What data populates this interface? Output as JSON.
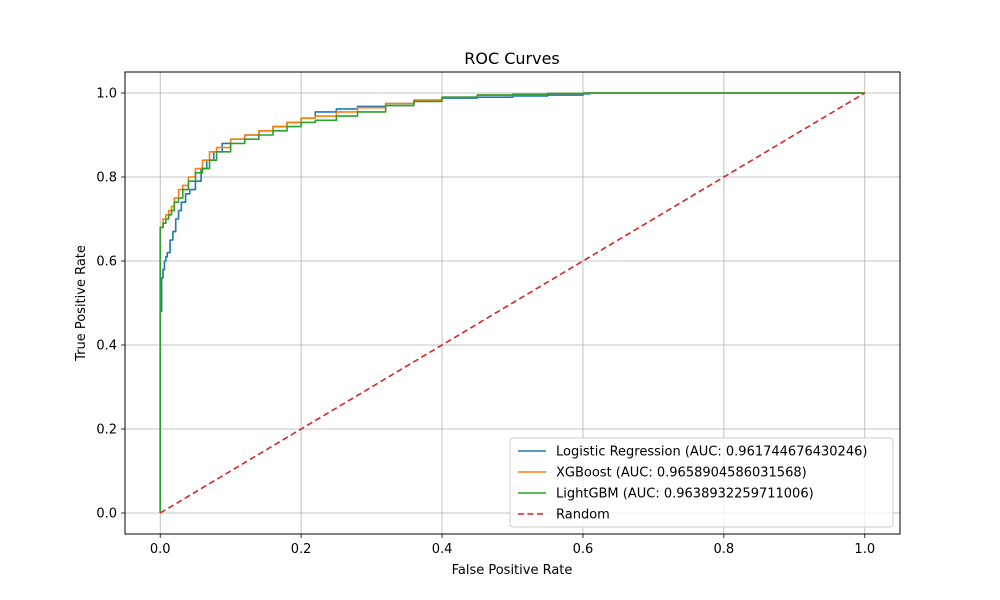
{
  "chart_data": {
    "type": "line",
    "title": "ROC Curves",
    "xlabel": "False Positive Rate",
    "ylabel": "True Positive Rate",
    "xlim": [
      -0.05,
      1.05
    ],
    "ylim": [
      -0.05,
      1.05
    ],
    "xticks": [
      0.0,
      0.2,
      0.4,
      0.6,
      0.8,
      1.0
    ],
    "yticks": [
      0.0,
      0.2,
      0.4,
      0.6,
      0.8,
      1.0
    ],
    "xtick_labels": [
      "0.0",
      "0.2",
      "0.4",
      "0.6",
      "0.8",
      "1.0"
    ],
    "ytick_labels": [
      "0.0",
      "0.2",
      "0.4",
      "0.6",
      "0.8",
      "1.0"
    ],
    "grid": true,
    "legend_position": "lower-right",
    "series": [
      {
        "name": "Logistic Regression (AUC: 0.961744676430246)",
        "color": "#1f77b4",
        "style": "solid",
        "x": [
          0.0,
          0.0,
          0.002,
          0.002,
          0.004,
          0.006,
          0.008,
          0.01,
          0.014,
          0.018,
          0.022,
          0.026,
          0.03,
          0.036,
          0.042,
          0.05,
          0.058,
          0.066,
          0.076,
          0.088,
          0.1,
          0.12,
          0.14,
          0.16,
          0.18,
          0.2,
          0.22,
          0.25,
          0.28,
          0.32,
          0.36,
          0.4,
          0.45,
          0.5,
          0.55,
          0.6,
          0.61,
          1.0
        ],
        "y": [
          0.0,
          0.48,
          0.48,
          0.56,
          0.58,
          0.6,
          0.61,
          0.62,
          0.65,
          0.67,
          0.7,
          0.72,
          0.74,
          0.76,
          0.77,
          0.79,
          0.82,
          0.84,
          0.86,
          0.88,
          0.89,
          0.9,
          0.91,
          0.92,
          0.93,
          0.94,
          0.955,
          0.962,
          0.968,
          0.975,
          0.983,
          0.988,
          0.99,
          0.993,
          0.995,
          0.998,
          1.0,
          1.0
        ]
      },
      {
        "name": "XGBoost (AUC: 0.9658904586031568)",
        "color": "#ff7f0e",
        "style": "solid",
        "x": [
          0.0,
          0.0,
          0.004,
          0.008,
          0.012,
          0.016,
          0.02,
          0.026,
          0.032,
          0.04,
          0.05,
          0.06,
          0.07,
          0.08,
          0.1,
          0.12,
          0.14,
          0.16,
          0.18,
          0.2,
          0.22,
          0.25,
          0.28,
          0.32,
          0.36,
          0.4,
          0.45,
          0.5,
          0.55,
          0.6,
          1.0
        ],
        "y": [
          0.0,
          0.68,
          0.7,
          0.71,
          0.72,
          0.73,
          0.75,
          0.77,
          0.78,
          0.8,
          0.82,
          0.84,
          0.86,
          0.87,
          0.89,
          0.9,
          0.91,
          0.92,
          0.93,
          0.94,
          0.945,
          0.955,
          0.965,
          0.975,
          0.983,
          0.99,
          0.995,
          0.997,
          0.999,
          1.0,
          1.0
        ]
      },
      {
        "name": "LightGBM (AUC: 0.9638932259711006)",
        "color": "#2ca02c",
        "style": "solid",
        "x": [
          0.0,
          0.0,
          0.004,
          0.008,
          0.012,
          0.016,
          0.02,
          0.026,
          0.032,
          0.04,
          0.05,
          0.06,
          0.07,
          0.08,
          0.1,
          0.12,
          0.14,
          0.16,
          0.18,
          0.2,
          0.22,
          0.25,
          0.28,
          0.32,
          0.36,
          0.4,
          0.45,
          0.5,
          0.55,
          0.6,
          1.0
        ],
        "y": [
          0.0,
          0.68,
          0.69,
          0.7,
          0.71,
          0.72,
          0.74,
          0.75,
          0.77,
          0.79,
          0.81,
          0.82,
          0.84,
          0.86,
          0.88,
          0.89,
          0.9,
          0.91,
          0.92,
          0.93,
          0.935,
          0.945,
          0.955,
          0.97,
          0.98,
          0.99,
          0.995,
          0.997,
          0.999,
          1.0,
          1.0
        ]
      },
      {
        "name": "Random",
        "color": "#d62728",
        "style": "dashed",
        "x": [
          0.0,
          1.0
        ],
        "y": [
          0.0,
          1.0
        ]
      }
    ]
  }
}
